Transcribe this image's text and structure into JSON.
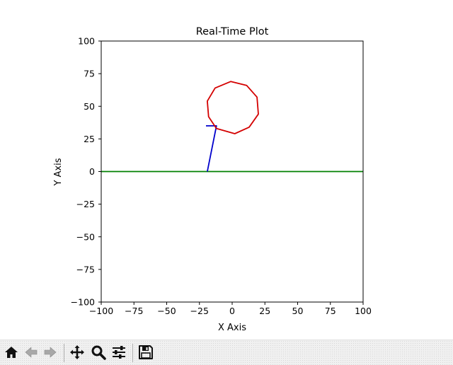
{
  "chart_data": {
    "type": "line",
    "title": "Real-Time Plot",
    "xlabel": "X Axis",
    "ylabel": "Y Axis",
    "xlim": [
      -100,
      100
    ],
    "ylim": [
      -100,
      100
    ],
    "xticks": [
      -100,
      -75,
      -50,
      -25,
      0,
      25,
      50,
      75,
      100
    ],
    "yticks": [
      -100,
      -75,
      -50,
      -25,
      0,
      25,
      50,
      75,
      100
    ],
    "xtick_labels": [
      "−100",
      "−75",
      "−50",
      "−25",
      "0",
      "25",
      "50",
      "75",
      "100"
    ],
    "ytick_labels": [
      "−100",
      "−75",
      "−50",
      "−25",
      "0",
      "25",
      "50",
      "75",
      "100"
    ],
    "grid": false,
    "series": [
      {
        "color": "#008000",
        "points": [
          [
            -100,
            0
          ],
          [
            100,
            0
          ]
        ]
      },
      {
        "color": "#0000cc",
        "points": [
          [
            -19,
            0
          ],
          [
            -12,
            35
          ],
          [
            -20,
            35
          ]
        ]
      },
      {
        "color": "#d40000",
        "points": [
          [
            -12,
            33
          ],
          [
            -18,
            42
          ],
          [
            -19,
            54
          ],
          [
            -13,
            64
          ],
          [
            -1,
            69
          ],
          [
            11,
            66
          ],
          [
            19,
            57
          ],
          [
            20,
            44
          ],
          [
            13,
            34
          ],
          [
            2,
            29
          ],
          [
            -12,
            33
          ]
        ]
      }
    ]
  },
  "toolbar": {
    "buttons": [
      {
        "name": "home-button",
        "icon": "home-icon"
      },
      {
        "name": "back-button",
        "icon": "arrow-left-icon"
      },
      {
        "name": "forward-button",
        "icon": "arrow-right-icon"
      },
      {
        "name": "pan-button",
        "icon": "move-icon"
      },
      {
        "name": "zoom-button",
        "icon": "magnifier-icon"
      },
      {
        "name": "configure-subplots-button",
        "icon": "sliders-icon"
      },
      {
        "name": "save-button",
        "icon": "save-icon"
      }
    ]
  }
}
